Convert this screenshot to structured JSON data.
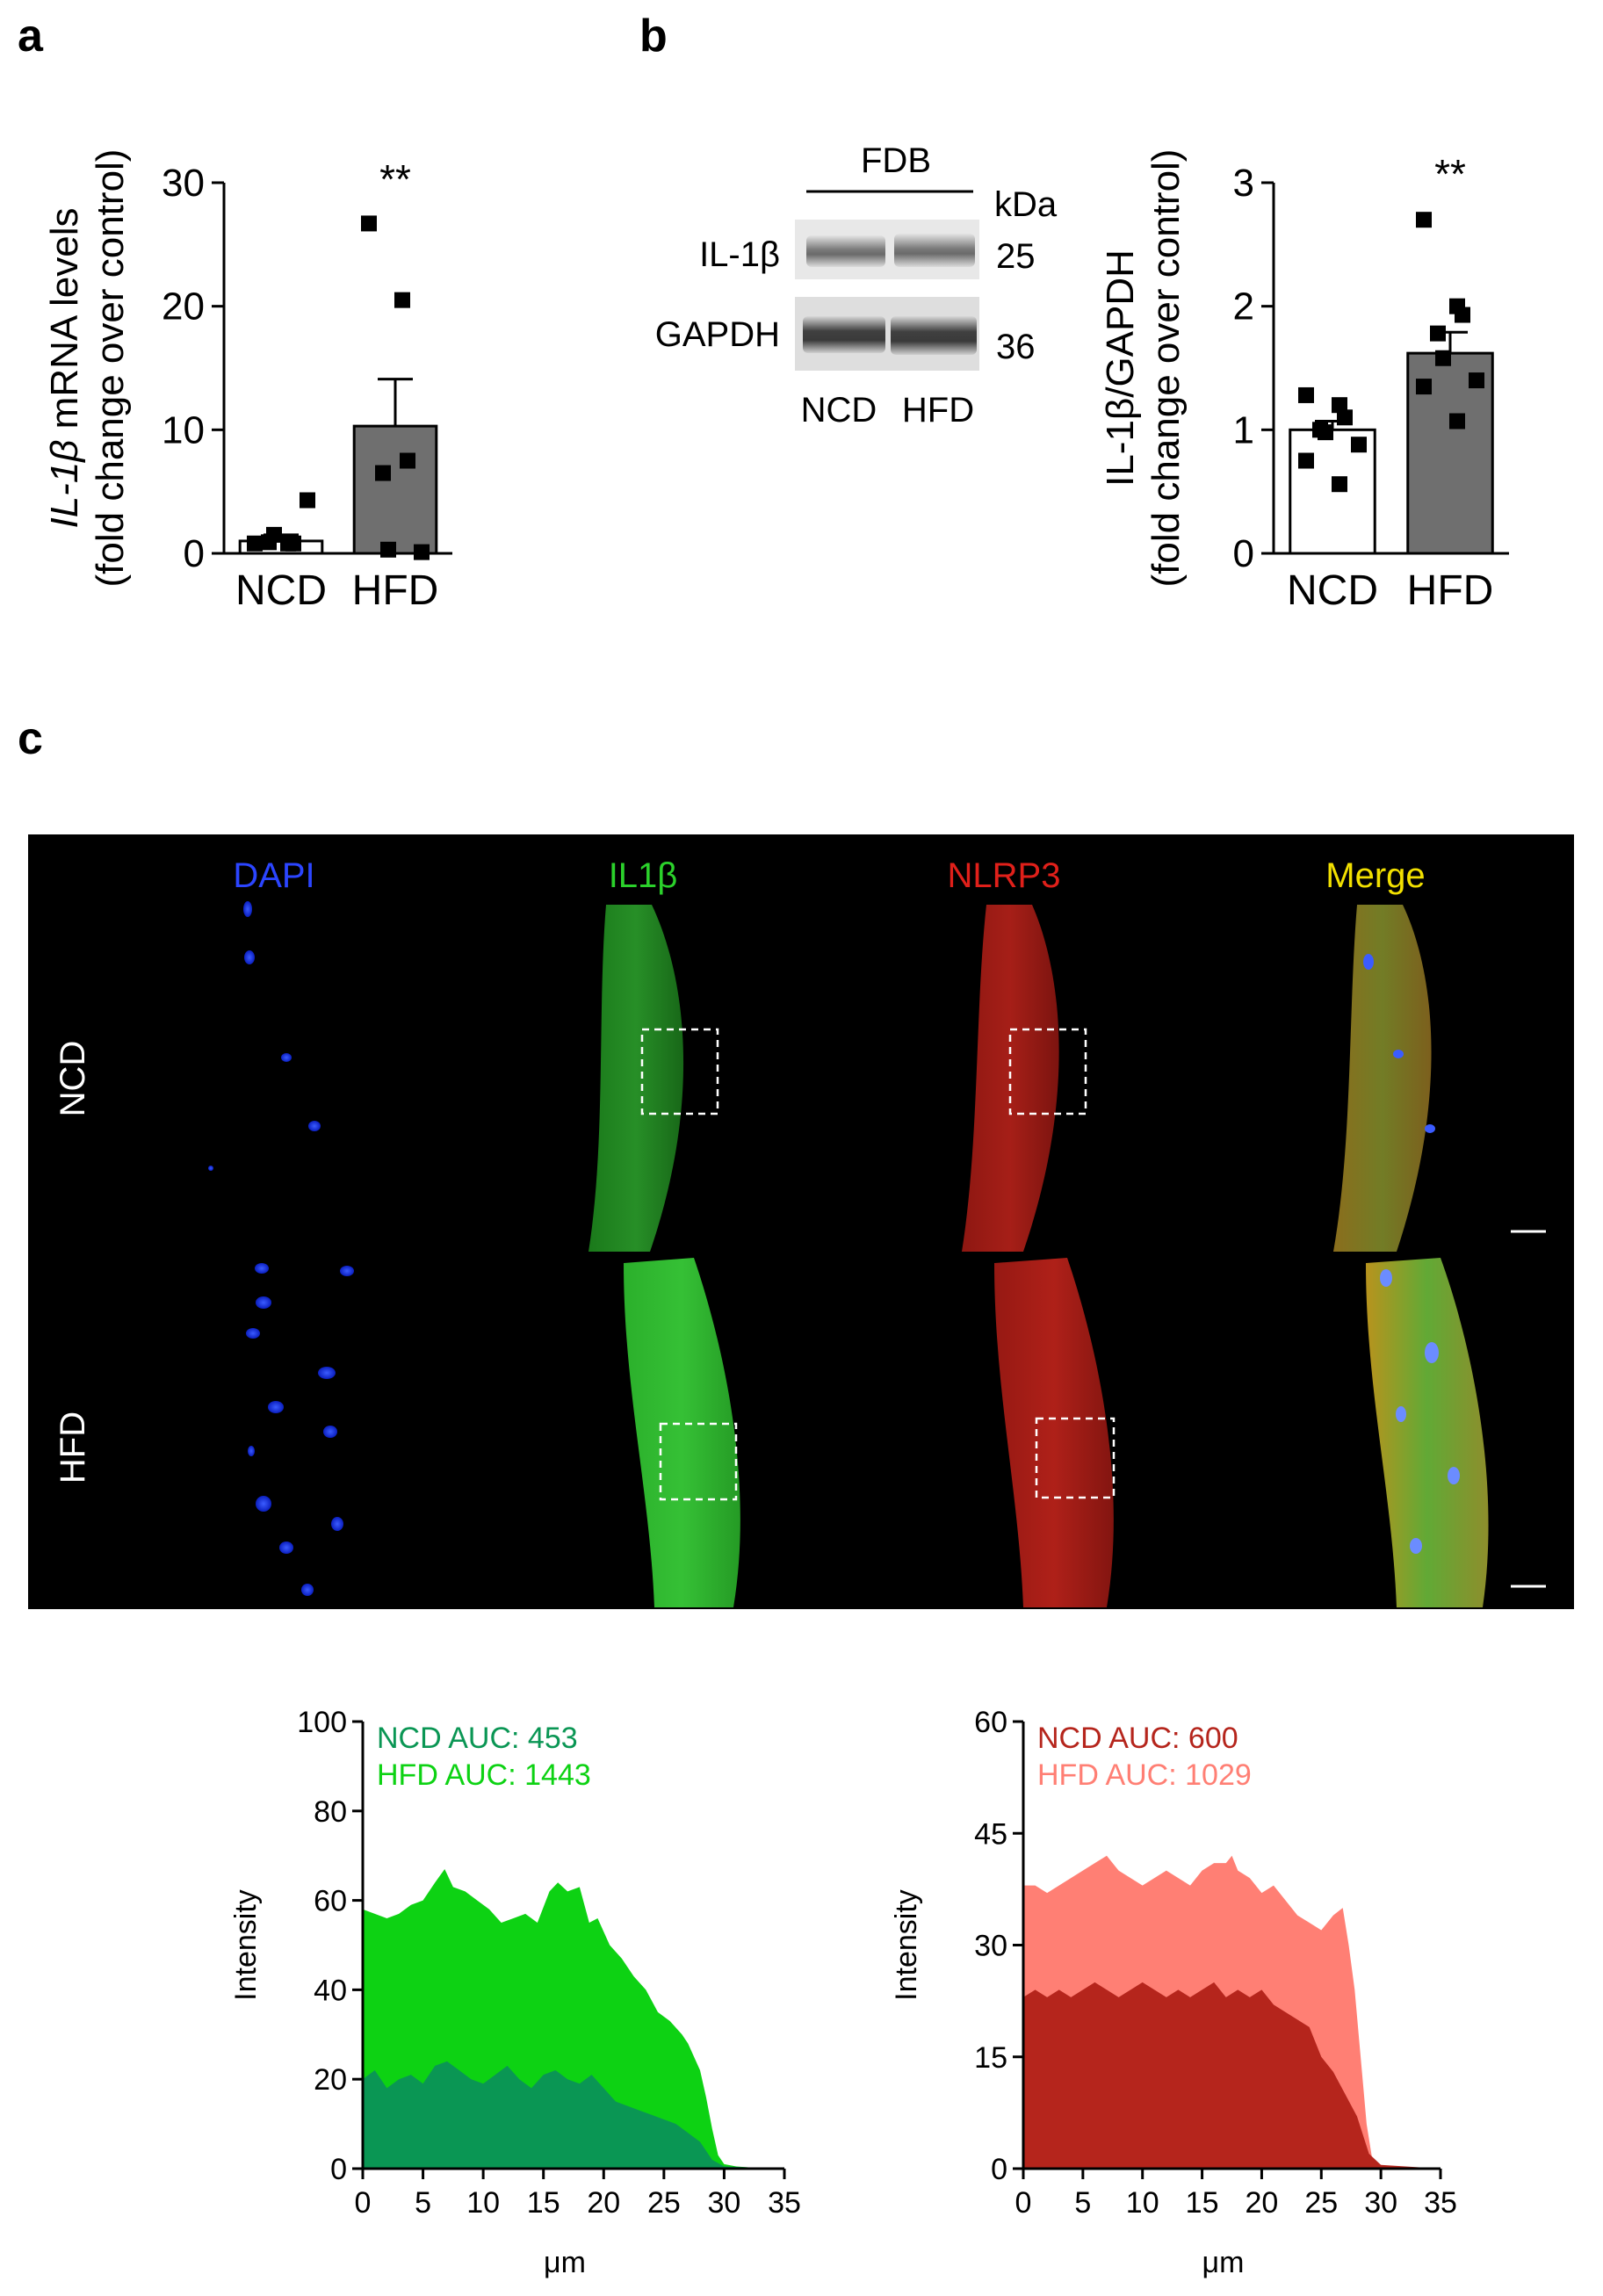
{
  "panels": {
    "a": "a",
    "b": "b",
    "c": "c"
  },
  "colors": {
    "ncd_bar": "#ffffff",
    "hfd_bar": "#6f6f6f",
    "green_ncd": "#0a9654",
    "green_hfd": "#0dd213",
    "red_ncd": "#b5251c",
    "red_hfd": "#ff7f74",
    "dapi": "#1a3cff",
    "il1b": "#2bd12b",
    "nlrp3": "#e0201a",
    "merge": "#f2e000"
  },
  "blot": {
    "tissue": "FDB",
    "kda_label": "kDa",
    "bands": [
      {
        "label": "IL-1β",
        "kda": "25"
      },
      {
        "label": "GAPDH",
        "kda": "36"
      }
    ],
    "lanes": [
      "NCD",
      "HFD"
    ]
  },
  "micrograph": {
    "channels": [
      "DAPI",
      "IL1β",
      "NLRP3",
      "Merge"
    ],
    "rows": [
      "NCD",
      "HFD"
    ]
  },
  "chart_data": [
    {
      "id": "a",
      "type": "bar",
      "ylabel_line1_italic": "IL-1β",
      "ylabel_line1_rest": " mRNA levels",
      "ylabel_line2": "(fold change over control)",
      "categories": [
        "NCD",
        "HFD"
      ],
      "values": [
        1.0,
        10.3
      ],
      "sem": [
        0.5,
        3.8
      ],
      "points": [
        [
          0.8,
          0.8,
          0.8,
          0.9,
          1.5,
          4.3
        ],
        [
          26.7,
          20.5,
          7.5,
          6.5,
          0.3,
          0.1
        ]
      ],
      "ylim": [
        0,
        30
      ],
      "yticks": [
        0,
        10,
        20,
        30
      ],
      "significance": [
        "",
        "**"
      ]
    },
    {
      "id": "b",
      "type": "bar",
      "ylabel_line1": "IL-1β/GAPDH",
      "ylabel_line2": "(fold change over control)",
      "categories": [
        "NCD",
        "HFD"
      ],
      "values": [
        1.0,
        1.62
      ],
      "sem": [
        0.07,
        0.17
      ],
      "points": [
        [
          1.28,
          1.2,
          1.1,
          1.0,
          0.98,
          0.88,
          0.75,
          0.56
        ],
        [
          2.7,
          2.0,
          1.93,
          1.78,
          1.58,
          1.4,
          1.35,
          1.07
        ]
      ],
      "ylim": [
        0,
        3
      ],
      "yticks": [
        0,
        1,
        2,
        3
      ],
      "significance": [
        "",
        "**"
      ]
    },
    {
      "id": "c-green",
      "type": "area",
      "xlabel": "μm",
      "ylabel": "Intensity",
      "xlim": [
        0,
        35
      ],
      "xticks": [
        0,
        5,
        10,
        15,
        20,
        25,
        30,
        35
      ],
      "ylim": [
        0,
        100
      ],
      "yticks": [
        0,
        20,
        40,
        60,
        80,
        100
      ],
      "series": [
        {
          "name": "HFD",
          "label": "HFD AUC: 1443",
          "x": [
            0,
            1,
            2,
            3,
            4,
            5,
            6,
            6.8,
            7.5,
            8.5,
            9.5,
            10.5,
            11.5,
            12.5,
            13.5,
            14.5,
            15.5,
            16.2,
            17,
            18,
            18.8,
            19.5,
            20.5,
            21.5,
            22.5,
            23.5,
            24.5,
            25.5,
            26.5,
            27,
            27.5,
            28,
            28.5,
            29,
            29.5,
            30,
            31,
            32,
            33,
            35
          ],
          "y": [
            58,
            57,
            56,
            57,
            59,
            60,
            64,
            67,
            63,
            62,
            60,
            58,
            55,
            56,
            57,
            55,
            62,
            64,
            62,
            63,
            55,
            56,
            50,
            47,
            43,
            40,
            35,
            33,
            30,
            28,
            25,
            22,
            16,
            9,
            3,
            1,
            0.5,
            0.3,
            0.2,
            0
          ]
        },
        {
          "name": "NCD",
          "label": "NCD AUC: 453",
          "x": [
            0,
            1,
            2,
            3,
            4,
            5,
            6,
            7,
            8,
            9,
            10,
            11,
            12,
            13,
            14,
            15,
            16,
            17,
            18,
            19,
            20,
            21,
            22,
            23,
            24,
            25,
            26,
            27,
            28,
            29,
            30,
            35
          ],
          "y": [
            20,
            22,
            18,
            20,
            21,
            19,
            23,
            24,
            22,
            20,
            19,
            21,
            23,
            20,
            18,
            21,
            22,
            20,
            19,
            21,
            18,
            15,
            14,
            13,
            12,
            11,
            10,
            8,
            6,
            2,
            0.5,
            0
          ]
        }
      ]
    },
    {
      "id": "c-red",
      "type": "area",
      "xlabel": "μm",
      "ylabel": "Intensity",
      "xlim": [
        0,
        35
      ],
      "xticks": [
        0,
        5,
        10,
        15,
        20,
        25,
        30,
        35
      ],
      "ylim": [
        0,
        60
      ],
      "yticks": [
        0,
        15,
        30,
        45,
        60
      ],
      "series": [
        {
          "name": "HFD",
          "label": "HFD AUC: 1029",
          "x": [
            0,
            1,
            2,
            3,
            4,
            5,
            6,
            7,
            8,
            9,
            10,
            11,
            12,
            13,
            14,
            15,
            16,
            17,
            17.5,
            18,
            19,
            20,
            21,
            22,
            23,
            24,
            25,
            26,
            26.8,
            27.3,
            27.8,
            28.3,
            28.8,
            29.3,
            30,
            31,
            35
          ],
          "y": [
            38,
            38,
            37,
            38,
            39,
            40,
            41,
            42,
            40,
            39,
            38,
            39,
            40,
            39,
            38,
            40,
            41,
            41,
            42,
            40,
            39,
            37,
            38,
            36,
            34,
            33,
            32,
            34,
            35,
            30,
            24,
            15,
            6,
            1,
            0.5,
            0.2,
            0
          ]
        },
        {
          "name": "NCD",
          "label": "NCD AUC: 600",
          "x": [
            0,
            1,
            2,
            3,
            4,
            5,
            6,
            7,
            8,
            9,
            10,
            11,
            12,
            13,
            14,
            15,
            16,
            17,
            18,
            19,
            20,
            21,
            22,
            23,
            24,
            25,
            26,
            27,
            28,
            29,
            30,
            35
          ],
          "y": [
            23,
            24,
            23,
            24,
            23,
            24,
            25,
            24,
            23,
            24,
            25,
            24,
            23,
            24,
            23,
            24,
            25,
            23,
            24,
            23,
            24,
            22,
            21,
            20,
            19,
            15,
            13,
            10,
            7,
            2,
            0.5,
            0
          ]
        }
      ]
    }
  ]
}
